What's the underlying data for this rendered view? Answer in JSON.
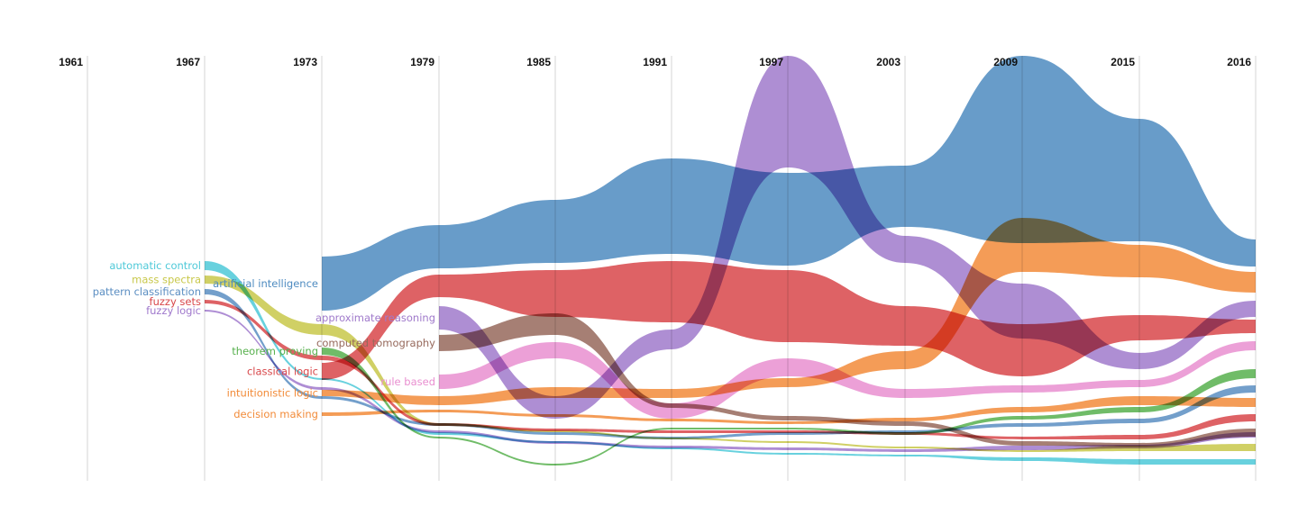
{
  "chart_data": {
    "type": "area",
    "x": [
      1961,
      1967,
      1973,
      1979,
      1985,
      1991,
      1997,
      2003,
      2009,
      2015,
      2016
    ],
    "tick_labels": [
      "1961",
      "1967",
      "1973",
      "1979",
      "1985",
      "1991",
      "1997",
      "2003",
      "2009",
      "2015",
      "2016"
    ],
    "grid": true,
    "legend": "none",
    "series": [
      {
        "name": "automatic control",
        "color": "#4ec9d8",
        "y0": [
          null,
          290,
          420,
          480,
          490,
          497,
          503,
          505,
          508,
          510,
          510
        ],
        "y1": [
          null,
          300,
          422,
          483,
          492,
          499,
          505,
          507,
          512,
          516,
          516
        ]
      },
      {
        "name": "mass spectra",
        "color": "#c8c84a",
        "y0": [
          null,
          306,
          360,
          470,
          478,
          486,
          490,
          496,
          500,
          495,
          493
        ],
        "y1": [
          null,
          315,
          372,
          473,
          480,
          488,
          492,
          498,
          502,
          501,
          501
        ]
      },
      {
        "name": "pattern classification",
        "color": "#5b8ec2",
        "y0": [
          null,
          321,
          440,
          470,
          480,
          485,
          480,
          478,
          470,
          465,
          428
        ],
        "y1": [
          null,
          327,
          443,
          473,
          483,
          488,
          483,
          481,
          474,
          470,
          436
        ]
      },
      {
        "name": "fuzzy sets",
        "color": "#d8474a",
        "y0": [
          null,
          333,
          395,
          470,
          476,
          478,
          478,
          480,
          485,
          483,
          460
        ],
        "y1": [
          null,
          337,
          400,
          473,
          479,
          481,
          481,
          483,
          488,
          488,
          468
        ]
      },
      {
        "name": "fuzzy logic",
        "color": "#a079cc",
        "y0": [
          null,
          344,
          430,
          478,
          490,
          495,
          497,
          499,
          495,
          494,
          480
        ],
        "y1": [
          null,
          346,
          433,
          481,
          493,
          498,
          500,
          502,
          500,
          498,
          486
        ]
      },
      {
        "name": "artificial intelligence",
        "color": "#4e8bc0",
        "y0": [
          null,
          null,
          285,
          250,
          222,
          176,
          192,
          184,
          62,
          132,
          266
        ],
        "y1": [
          null,
          null,
          345,
          298,
          292,
          282,
          295,
          252,
          270,
          268,
          296
        ]
      },
      {
        "name": "approximate reasoning",
        "color": "#a07acb",
        "y0": [
          null,
          null,
          null,
          340,
          440,
          366,
          62,
          262,
          315,
          392,
          334
        ],
        "y1": [
          null,
          null,
          null,
          366,
          465,
          388,
          186,
          292,
          376,
          410,
          352
        ]
      },
      {
        "name": "computed tomography",
        "color": "#96695c",
        "y0": [
          null,
          null,
          null,
          372,
          348,
          448,
          462,
          468,
          490,
          492,
          476
        ],
        "y1": [
          null,
          null,
          null,
          390,
          372,
          453,
          467,
          473,
          495,
          496,
          485
        ]
      },
      {
        "name": "rule based",
        "color": "#e98fd0",
        "y0": [
          null,
          null,
          null,
          416,
          380,
          448,
          398,
          432,
          428,
          422,
          379
        ],
        "y1": [
          null,
          null,
          null,
          432,
          398,
          465,
          418,
          442,
          436,
          430,
          389
        ]
      },
      {
        "name": "theorem proving",
        "color": "#57b04d",
        "y0": [
          null,
          null,
          386,
          485,
          515,
          475,
          475,
          480,
          462,
          452,
          410
        ],
        "y1": [
          null,
          null,
          394,
          487,
          517,
          477,
          477,
          483,
          466,
          458,
          420
        ]
      },
      {
        "name": "classical logic",
        "color": "#d8474a",
        "y0": [
          null,
          null,
          403,
          305,
          300,
          290,
          300,
          340,
          360,
          350,
          355
        ],
        "y1": [
          null,
          null,
          422,
          330,
          352,
          358,
          380,
          384,
          418,
          378,
          370
        ]
      },
      {
        "name": "intuitionistic logic",
        "color": "#f28b39",
        "y0": [
          null,
          null,
          433,
          440,
          430,
          432,
          420,
          390,
          242,
          272,
          302
        ],
        "y1": [
          null,
          null,
          440,
          450,
          442,
          442,
          430,
          410,
          302,
          308,
          325
        ]
      },
      {
        "name": "decision making",
        "color": "#f28b39",
        "y0": [
          null,
          null,
          458,
          455,
          460,
          465,
          468,
          464,
          452,
          440,
          442
        ],
        "y1": [
          null,
          null,
          462,
          458,
          463,
          468,
          471,
          468,
          458,
          450,
          452
        ]
      }
    ],
    "labels": [
      {
        "series": "automatic control",
        "text": "automatic control"
      },
      {
        "series": "mass spectra",
        "text": "mass spectra"
      },
      {
        "series": "pattern classification",
        "text": "pattern classification"
      },
      {
        "series": "fuzzy sets",
        "text": "fuzzy sets"
      },
      {
        "series": "fuzzy logic",
        "text": "fuzzy logic"
      },
      {
        "series": "artificial intelligence",
        "text": "artificial intelligence"
      },
      {
        "series": "approximate reasoning",
        "text": "approximate reasoning"
      },
      {
        "series": "computed tomography",
        "text": "computed tomography"
      },
      {
        "series": "rule based",
        "text": "rule based"
      },
      {
        "series": "theorem proving",
        "text": "theorem proving"
      },
      {
        "series": "classical logic",
        "text": "classical logic"
      },
      {
        "series": "intuitionistic logic",
        "text": "intuitionistic logic"
      },
      {
        "series": "decision making",
        "text": "decision making"
      }
    ]
  }
}
